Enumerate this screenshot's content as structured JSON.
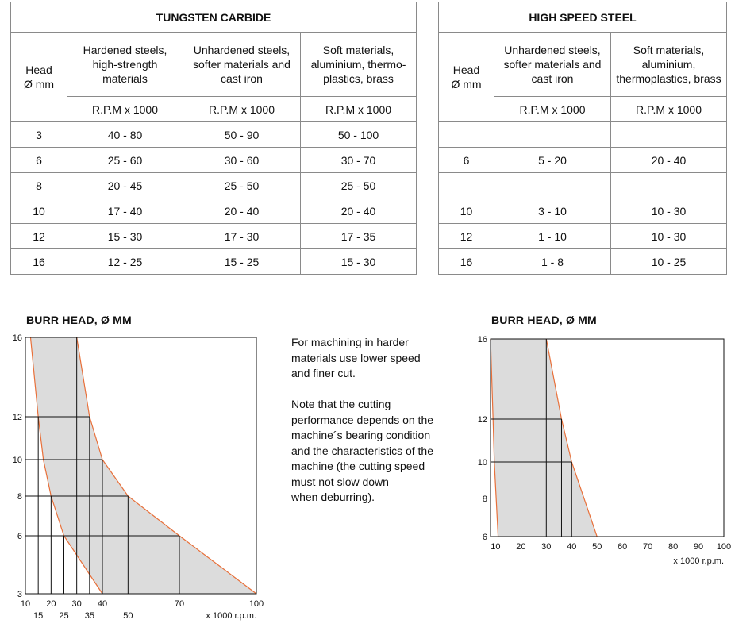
{
  "carbide_table": {
    "title": "TUNGSTEN CARBIDE",
    "headers": [
      "Head\nØ mm",
      "Hardened steels, high-strength materials",
      "Unhardened steels, softer materials and cast iron",
      "Soft materials, aluminium, thermo-plastics, brass"
    ],
    "units": [
      "",
      "R.P.M x 1000",
      "R.P.M x 1000",
      "R.P.M x 1000"
    ],
    "rows": [
      [
        "3",
        "40 - 80",
        "50 - 90",
        "50 - 100"
      ],
      [
        "6",
        "25 - 60",
        "30 - 60",
        "30 - 70"
      ],
      [
        "8",
        "20 - 45",
        "25 - 50",
        "25 - 50"
      ],
      [
        "10",
        "17 - 40",
        "20 - 40",
        "20 - 40"
      ],
      [
        "12",
        "15 - 30",
        "17 - 30",
        "17 - 35"
      ],
      [
        "16",
        "12 - 25",
        "15 - 25",
        "15 - 30"
      ]
    ]
  },
  "hss_table": {
    "title": "HIGH SPEED STEEL",
    "headers": [
      "Head\nØ mm",
      "Unhardened steels, softer materials and cast iron",
      "Soft materials, aluminium, thermoplastics, brass"
    ],
    "units": [
      "",
      "R.P.M x 1000",
      "R.P.M x 1000"
    ],
    "rows": [
      [
        "",
        "",
        ""
      ],
      [
        "6",
        "5 - 20",
        "20 - 40"
      ],
      [
        "",
        "",
        ""
      ],
      [
        "10",
        "3 - 10",
        "10 - 30"
      ],
      [
        "12",
        "1 - 10",
        "10 - 30"
      ],
      [
        "16",
        "1 - 8",
        "10 - 25"
      ]
    ]
  },
  "note": {
    "text": "For machining in harder\nmaterials use lower speed\nand finer cut.\n\nNote that the cutting\nperformance depends on the\nmachine´s bearing condition\nand the characteristics of the\nmachine (the cutting speed\nmust not slow down\nwhen deburring)."
  },
  "colors": {
    "band_fill": "#dcdcdc",
    "band_edge": "#e8703a",
    "grid": "#111111",
    "table_border": "#8a8a8a"
  },
  "chart_data": [
    {
      "type": "area",
      "title": "BURR HEAD, Ø MM",
      "xlabel": "x 1000 r.p.m.",
      "xlim": [
        10,
        100
      ],
      "y_positions": [
        3,
        6,
        8,
        10,
        12,
        16
      ],
      "x_tick_labels_row1": [
        "10",
        "20",
        "30",
        "40",
        "70",
        "100"
      ],
      "x_tick_labels_row1_values": [
        10,
        20,
        30,
        40,
        70,
        100
      ],
      "x_tick_labels_row2": [
        "15",
        "25",
        "35",
        "50"
      ],
      "x_tick_labels_row2_values": [
        15,
        25,
        35,
        50
      ],
      "y_tick_labels": [
        "3",
        "6",
        "8",
        "10",
        "12",
        "16"
      ],
      "band_low": [
        {
          "y": 16,
          "x": 12
        },
        {
          "y": 12,
          "x": 15
        },
        {
          "y": 10,
          "x": 17
        },
        {
          "y": 8,
          "x": 20
        },
        {
          "y": 6,
          "x": 25
        },
        {
          "y": 3,
          "x": 40
        }
      ],
      "band_high": [
        {
          "y": 16,
          "x": 30
        },
        {
          "y": 12,
          "x": 35
        },
        {
          "y": 10,
          "x": 40
        },
        {
          "y": 8,
          "x": 50
        },
        {
          "y": 6,
          "x": 70
        },
        {
          "y": 3,
          "x": 100
        }
      ],
      "grid_rows": [
        {
          "y": 16,
          "x_end": 30
        },
        {
          "y": 12,
          "x_end": 35
        },
        {
          "y": 10,
          "x_end": 40
        },
        {
          "y": 8,
          "x_end": 50
        },
        {
          "y": 6,
          "x_end": 70
        }
      ],
      "grid_cols": [
        {
          "x": 15,
          "y_top": 12
        },
        {
          "x": 20,
          "y_top": 8
        },
        {
          "x": 25,
          "y_top": 6
        },
        {
          "x": 30,
          "y_top": 16
        },
        {
          "x": 35,
          "y_top": 12
        },
        {
          "x": 40,
          "y_top": 10
        },
        {
          "x": 50,
          "y_top": 8
        },
        {
          "x": 70,
          "y_top": 6
        }
      ]
    },
    {
      "type": "area",
      "title": "BURR HEAD, Ø MM",
      "xlabel": "x 1000 r.p.m.",
      "xlim": [
        8,
        100
      ],
      "y_positions": [
        6,
        8,
        10,
        12,
        16
      ],
      "x_tick_labels_row1": [
        "10",
        "20",
        "30",
        "40",
        "50",
        "60",
        "70",
        "80",
        "90",
        "100"
      ],
      "x_tick_labels_row1_values": [
        10,
        20,
        30,
        40,
        50,
        60,
        70,
        80,
        90,
        100
      ],
      "y_tick_labels": [
        "6",
        "8",
        "10",
        "12",
        "16"
      ],
      "band_low": [
        {
          "y": 16,
          "x": 8
        },
        {
          "y": 12,
          "x": 9
        },
        {
          "y": 10,
          "x": 9.5
        },
        {
          "y": 6,
          "x": 11
        }
      ],
      "band_high": [
        {
          "y": 16,
          "x": 30
        },
        {
          "y": 12,
          "x": 36
        },
        {
          "y": 10,
          "x": 40
        },
        {
          "y": 6,
          "x": 50
        }
      ],
      "grid_rows": [
        {
          "y": 12,
          "x_end": 36
        },
        {
          "y": 10,
          "x_end": 40
        }
      ],
      "grid_cols": [
        {
          "x": 30,
          "y_top": 16
        },
        {
          "x": 36,
          "y_top": 12
        },
        {
          "x": 40,
          "y_top": 10
        }
      ]
    }
  ]
}
